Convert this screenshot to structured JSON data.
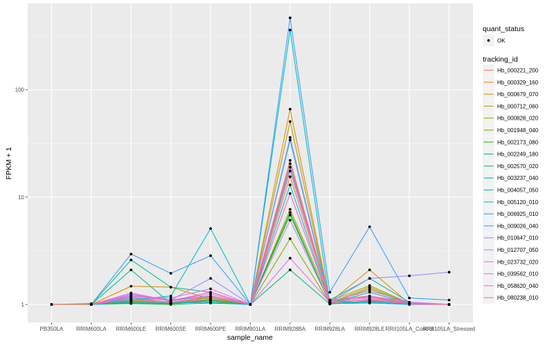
{
  "chart_data": {
    "type": "line",
    "title": "",
    "xlabel": "sample_name",
    "ylabel": "FPKM + 1",
    "yscale": "log10",
    "ylim": [
      0.68,
      637
    ],
    "yticks": [
      1,
      10,
      100
    ],
    "ytick_labels": [
      "1",
      "10",
      "100"
    ],
    "grid": true,
    "legend_position": "right",
    "categories": [
      "PB350LA",
      "RRIM600LA",
      "RRIM600LE",
      "RRIM600SE",
      "RRIM600PE",
      "RRIM901LA",
      "RRIM928BA",
      "RRIM928LA",
      "RRIM928LE",
      "RRII105LA_Control",
      "RRII105LA_Stressed"
    ],
    "legend_shape": {
      "title": "quant_status",
      "entries": [
        "OK"
      ]
    },
    "legend_color": {
      "title": "tracking_id"
    },
    "series": [
      {
        "name": "Hb_000221_200",
        "color": "#F8766D",
        "values": [
          1,
          1.0,
          1.15,
          1.05,
          1.12,
          1,
          22,
          1.05,
          1.18,
          1.02,
          1.0
        ]
      },
      {
        "name": "Hb_000329_160",
        "color": "#EA8331",
        "values": [
          1,
          1.0,
          1.08,
          1.03,
          1.1,
          1,
          15.5,
          1.1,
          1.2,
          1.02,
          1.0
        ]
      },
      {
        "name": "Hb_000679_070",
        "color": "#D89000",
        "values": [
          1,
          1.0,
          1.48,
          1.45,
          1.12,
          1,
          66,
          1.05,
          2.1,
          1.02,
          1.0
        ]
      },
      {
        "name": "Hb_000712_060",
        "color": "#C09B00",
        "values": [
          1,
          1.01,
          1.05,
          1.02,
          1.2,
          1,
          50.6,
          1.04,
          1.45,
          1.02,
          1.0
        ]
      },
      {
        "name": "Hb_000828_020",
        "color": "#A3A500",
        "values": [
          1,
          1.01,
          1.1,
          1.05,
          1.15,
          1,
          7.7,
          1.08,
          1.5,
          1.03,
          1.0
        ]
      },
      {
        "name": "Hb_001948_040",
        "color": "#7CAE00",
        "values": [
          1,
          1.02,
          1.03,
          1.01,
          1.08,
          1,
          4.1,
          1.02,
          1.4,
          1.01,
          1.0
        ]
      },
      {
        "name": "Hb_002173_080",
        "color": "#39B600",
        "values": [
          1,
          1.01,
          1.06,
          1.03,
          1.05,
          1,
          6.8,
          1.03,
          1.12,
          1.01,
          1.0
        ]
      },
      {
        "name": "Hb_002249_180",
        "color": "#00BB4E",
        "values": [
          1,
          1.0,
          1.02,
          1.0,
          1.03,
          1,
          7.2,
          1.01,
          1.06,
          1.0,
          1.0
        ]
      },
      {
        "name": "Hb_002570_020",
        "color": "#00BF7D",
        "values": [
          1,
          1.0,
          2.1,
          1.02,
          1.1,
          1,
          2.1,
          1.01,
          1.08,
          1.0,
          1.0
        ]
      },
      {
        "name": "Hb_003237_040",
        "color": "#00C1A3",
        "values": [
          1,
          1.0,
          2.6,
          1.45,
          1.3,
          1,
          19,
          1.1,
          1.75,
          1.05,
          1.0
        ]
      },
      {
        "name": "Hb_004057_050",
        "color": "#00BFC4",
        "values": [
          1,
          1.0,
          1.1,
          1.2,
          5.1,
          1,
          360,
          1.02,
          1.3,
          1.02,
          1.0
        ]
      },
      {
        "name": "Hb_005120_010",
        "color": "#00BAE0",
        "values": [
          1,
          1.0,
          1.15,
          1.1,
          1.2,
          1,
          13,
          1.05,
          1.05,
          1.02,
          1.0
        ]
      },
      {
        "name": "Hb_006925_010",
        "color": "#00B0F6",
        "values": [
          1,
          1.0,
          1.05,
          1.03,
          1.05,
          1,
          34,
          1.02,
          1.03,
          1.0,
          1.0
        ]
      },
      {
        "name": "Hb_009026_040",
        "color": "#35A2FF",
        "values": [
          1,
          1.0,
          2.95,
          1.95,
          2.85,
          1,
          468,
          1.3,
          5.3,
          1.15,
          1.1
        ]
      },
      {
        "name": "Hb_010647_010",
        "color": "#9590FF",
        "values": [
          1,
          1.0,
          1.25,
          1.1,
          1.75,
          1,
          36,
          1.05,
          1.75,
          1.85,
          2.0
        ]
      },
      {
        "name": "Hb_012707_050",
        "color": "#C77CFF",
        "values": [
          1,
          1.0,
          1.2,
          1.08,
          1.2,
          1,
          6.1,
          1.03,
          1.2,
          1.05,
          1.0
        ]
      },
      {
        "name": "Hb_023732_020",
        "color": "#E76BF3",
        "values": [
          1,
          1.0,
          1.18,
          1.15,
          1.4,
          1,
          2.7,
          1.05,
          1.35,
          1.05,
          1.0
        ]
      },
      {
        "name": "Hb_039562_010",
        "color": "#FA62DB",
        "values": [
          1,
          1.0,
          1.22,
          1.1,
          1.25,
          1,
          17.5,
          1.1,
          1.15,
          1.02,
          1.0
        ]
      },
      {
        "name": "Hb_058620_040",
        "color": "#FF62BC",
        "values": [
          1,
          1.0,
          1.28,
          1.08,
          1.3,
          1,
          10.8,
          1.06,
          1.1,
          1.02,
          1.0
        ]
      },
      {
        "name": "Hb_080238_010",
        "color": "#FF6C91",
        "values": [
          1,
          1.0,
          1.12,
          1.05,
          1.18,
          1,
          20.5,
          1.04,
          1.12,
          1.01,
          1.0
        ]
      }
    ]
  }
}
